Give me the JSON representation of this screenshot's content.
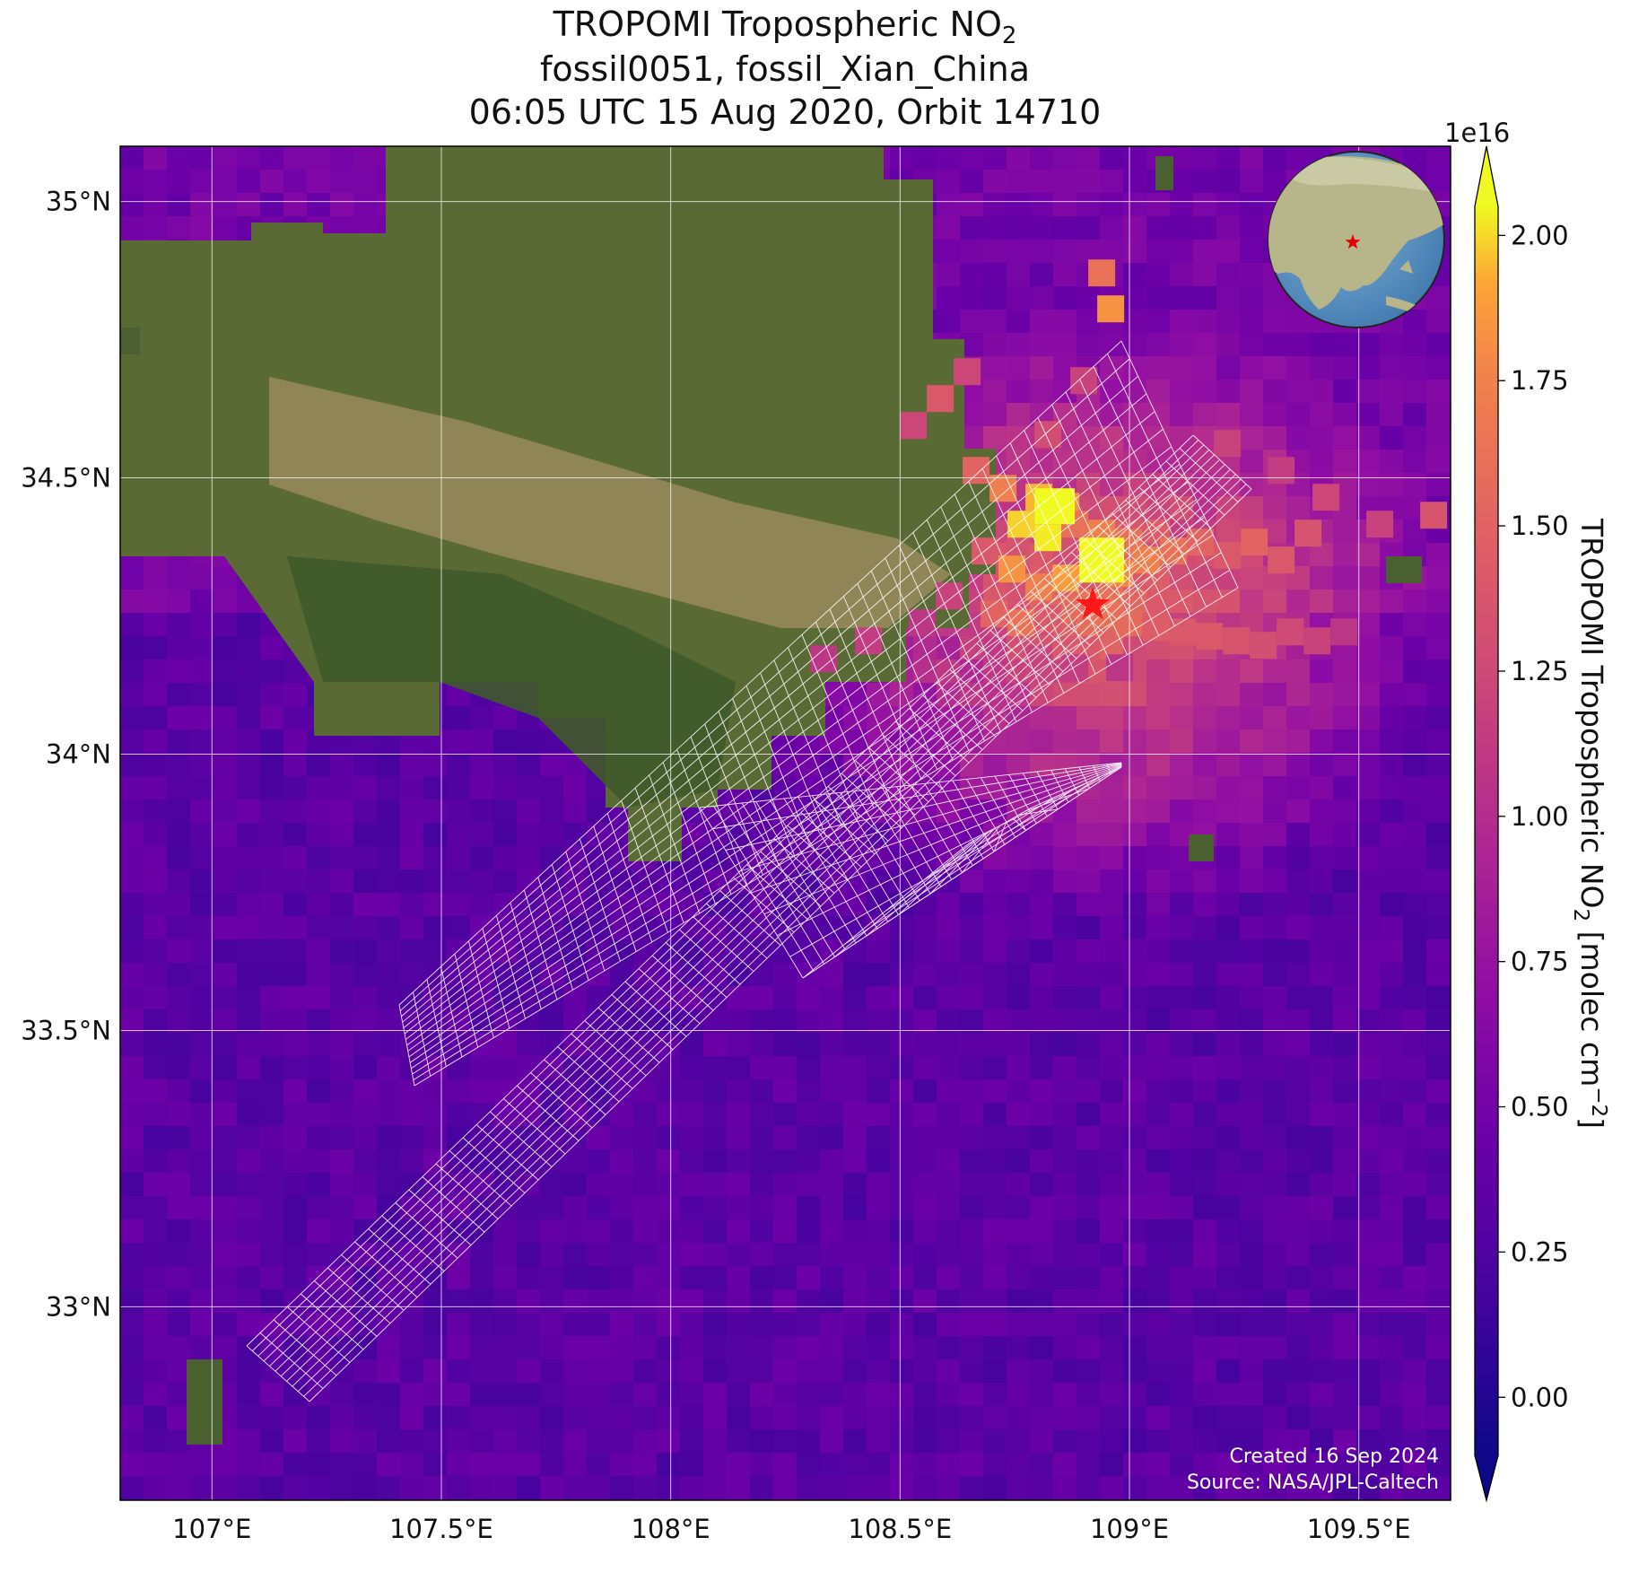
{
  "title": {
    "line1_prefix": "TROPOMI Tropospheric NO",
    "line1_sub": "2",
    "line2": "fossil0051, fossil_Xian_China",
    "line3": "06:05 UTC 15 Aug 2020, Orbit 14710"
  },
  "map": {
    "lon_range": [
      106.8,
      109.7
    ],
    "lat_range": [
      32.65,
      35.1
    ],
    "lon_ticks": [
      {
        "value": 107.0,
        "label": "107°E"
      },
      {
        "value": 107.5,
        "label": "107.5°E"
      },
      {
        "value": 108.0,
        "label": "108°E"
      },
      {
        "value": 108.5,
        "label": "108.5°E"
      },
      {
        "value": 109.0,
        "label": "109°E"
      },
      {
        "value": 109.5,
        "label": "109.5°E"
      }
    ],
    "lat_ticks": [
      {
        "value": 35.0,
        "label": "35°N"
      },
      {
        "value": 34.5,
        "label": "34.5°N"
      },
      {
        "value": 34.0,
        "label": "34°N"
      },
      {
        "value": 33.5,
        "label": "33.5°N"
      },
      {
        "value": 33.0,
        "label": "33°N"
      }
    ],
    "gridlines": true,
    "site": {
      "name": "fossil_Xian_China",
      "lon": 108.92,
      "lat": 34.27,
      "marker": "star",
      "color": "#ff1a1a"
    },
    "inset_globe": {
      "placement": "top-right",
      "marker": "star"
    },
    "credit_line1": "Created 16 Sep 2024",
    "credit_line2": "Source: NASA/JPL-Caltech"
  },
  "colorbar": {
    "colormap": "plasma",
    "vmin": -0.1,
    "vmax": 2.05,
    "multiplier": "1e16",
    "extend": "both",
    "ticks": [
      {
        "value": 0.0,
        "label": "0.00"
      },
      {
        "value": 0.25,
        "label": "0.25"
      },
      {
        "value": 0.5,
        "label": "0.50"
      },
      {
        "value": 0.75,
        "label": "0.75"
      },
      {
        "value": 1.0,
        "label": "1.00"
      },
      {
        "value": 1.25,
        "label": "1.25"
      },
      {
        "value": 1.5,
        "label": "1.50"
      },
      {
        "value": 1.75,
        "label": "1.75"
      },
      {
        "value": 2.0,
        "label": "2.00"
      }
    ],
    "label_prefix": "TROPOMI Tropospheric NO",
    "label_sub": "2",
    "label_middle": " [molec cm",
    "label_sup": "−2",
    "label_suffix": "]"
  }
}
